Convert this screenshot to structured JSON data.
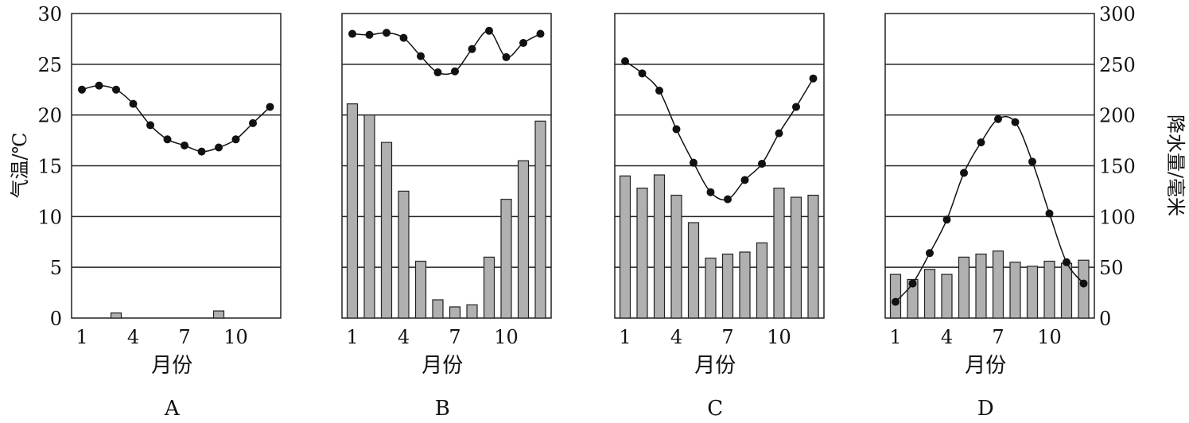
{
  "chart_data": [
    {
      "type": "bar+line",
      "panel_label": "A",
      "xlabel": "月份",
      "x": [
        1,
        2,
        3,
        4,
        5,
        6,
        7,
        8,
        9,
        10,
        11,
        12
      ],
      "x_tick_labels": [
        "1",
        "4",
        "7",
        "10"
      ],
      "temperature": [
        22.5,
        22.9,
        22.5,
        21.1,
        19.0,
        17.6,
        17.0,
        16.4,
        16.8,
        17.6,
        19.2,
        20.8
      ],
      "precipitation": [
        0,
        0,
        5,
        0,
        0,
        0,
        0,
        0,
        7,
        0,
        0,
        0
      ]
    },
    {
      "type": "bar+line",
      "panel_label": "B",
      "xlabel": "月份",
      "x": [
        1,
        2,
        3,
        4,
        5,
        6,
        7,
        8,
        9,
        10,
        11,
        12
      ],
      "x_tick_labels": [
        "1",
        "4",
        "7",
        "10"
      ],
      "temperature": [
        28.0,
        27.9,
        28.1,
        27.6,
        25.8,
        24.2,
        24.3,
        26.5,
        28.3,
        25.7,
        27.1,
        28.0
      ],
      "precipitation": [
        211,
        200,
        173,
        125,
        56,
        18,
        11,
        13,
        60,
        117,
        155,
        194
      ]
    },
    {
      "type": "bar+line",
      "panel_label": "C",
      "xlabel": "月份",
      "x": [
        1,
        2,
        3,
        4,
        5,
        6,
        7,
        8,
        9,
        10,
        11,
        12
      ],
      "x_tick_labels": [
        "1",
        "4",
        "7",
        "10"
      ],
      "temperature": [
        25.3,
        24.1,
        22.4,
        18.6,
        15.3,
        12.4,
        11.7,
        13.6,
        15.2,
        18.2,
        20.8,
        23.6
      ],
      "precipitation": [
        140,
        128,
        141,
        121,
        94,
        59,
        63,
        65,
        74,
        128,
        119,
        121
      ]
    },
    {
      "type": "bar+line",
      "panel_label": "D",
      "xlabel": "月份",
      "x": [
        1,
        2,
        3,
        4,
        5,
        6,
        7,
        8,
        9,
        10,
        11,
        12
      ],
      "x_tick_labels": [
        "1",
        "4",
        "7",
        "10"
      ],
      "temperature": [
        1.6,
        3.4,
        6.4,
        9.7,
        14.3,
        17.3,
        19.6,
        19.3,
        15.4,
        10.3,
        5.5,
        3.4
      ],
      "precipitation": [
        43,
        38,
        48,
        43,
        60,
        63,
        66,
        55,
        51,
        56,
        54,
        57
      ]
    }
  ],
  "axes": {
    "left_label": "气温/℃",
    "left_ticks": [
      "0",
      "5",
      "10",
      "15",
      "20",
      "25",
      "30"
    ],
    "left_range": [
      0,
      30
    ],
    "right_label": "降水量/毫米",
    "right_ticks": [
      "0",
      "50",
      "100",
      "150",
      "200",
      "250",
      "300"
    ],
    "right_range": [
      0,
      300
    ],
    "grid": true
  },
  "colors": {
    "bar": "#b0b0b0",
    "line": "#111111"
  }
}
